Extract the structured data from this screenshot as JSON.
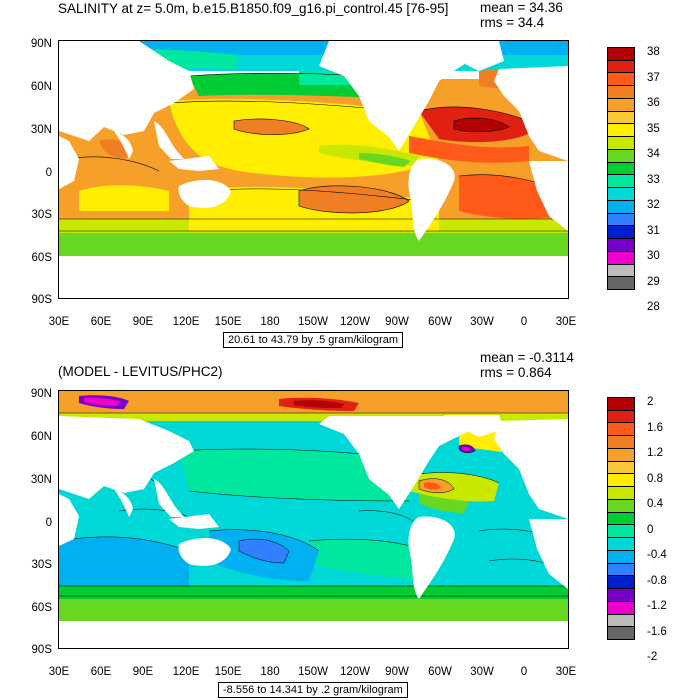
{
  "panels": [
    {
      "title": "SALINITY at z=   5.0m, b.e15.B1850.f09_g16.pi_control.45 [76-95]",
      "mean_text": "mean = 34.36",
      "rms_text": "rms = 34.4",
      "info_box": "20.61 to 43.79 by .5 gram/kilogram",
      "lat_labels": [
        "90N",
        "60N",
        "30N",
        "0",
        "30S",
        "60S",
        "90S"
      ],
      "lon_labels": [
        "30E",
        "60E",
        "90E",
        "120E",
        "150E",
        "180",
        "150W",
        "120W",
        "90W",
        "60W",
        "30W",
        "0",
        "30E"
      ],
      "colorbar": {
        "labels": [
          "38",
          "37",
          "36",
          "35",
          "34",
          "33",
          "32",
          "31",
          "30",
          "29",
          "28"
        ],
        "colors": [
          "#b30000",
          "#e02010",
          "#ff5a1a",
          "#f07e22",
          "#f6a02a",
          "#f8c838",
          "#ffee00",
          "#c8e800",
          "#66d822",
          "#00cc33",
          "#00e8a0",
          "#00d8d8",
          "#00b0f0",
          "#3080ff",
          "#0020cc",
          "#7700c8",
          "#ee00cc",
          "#bbbbbb",
          "#666666"
        ]
      },
      "chart_data": {
        "type": "heatmap",
        "title": "SALINITY at z=   5.0m, b.e15.B1850.f09_g16.pi_control.45 [76-95]",
        "variable": "salinity",
        "units": "gram/kilogram",
        "depth": "5.0m",
        "mean": 34.36,
        "rms": 34.4,
        "data_range": [
          20.61,
          43.79
        ],
        "contour_interval": 0.5,
        "lat_range": [
          "90S",
          "90N"
        ],
        "lon_range": [
          "30E",
          "30E"
        ],
        "colorbar_levels": [
          28,
          29,
          30,
          31,
          32,
          33,
          34,
          35,
          36,
          37,
          38
        ]
      }
    },
    {
      "title": "(MODEL - LEVITUS/PHC2)",
      "mean_text": "mean = -0.3114",
      "rms_text": "rms = 0.864",
      "info_box": "-8.556 to 14.341 by .2 gram/kilogram",
      "lat_labels": [
        "90N",
        "60N",
        "30N",
        "0",
        "30S",
        "60S",
        "90S"
      ],
      "lon_labels": [
        "30E",
        "60E",
        "90E",
        "120E",
        "150E",
        "180",
        "150W",
        "120W",
        "90W",
        "60W",
        "30W",
        "0",
        "30E"
      ],
      "colorbar": {
        "labels": [
          "2",
          "1.6",
          "1.2",
          "0.8",
          "0.4",
          "0",
          "-0.4",
          "-0.8",
          "-1.2",
          "-1.6",
          "-2"
        ],
        "colors": [
          "#b30000",
          "#e02010",
          "#ff5a1a",
          "#f07e22",
          "#f6a02a",
          "#f8c838",
          "#ffee00",
          "#c8e800",
          "#66d822",
          "#00cc33",
          "#00e8a0",
          "#00d8d8",
          "#00b0f0",
          "#3080ff",
          "#0020cc",
          "#7700c8",
          "#ee00cc",
          "#bbbbbb",
          "#666666"
        ]
      },
      "chart_data": {
        "type": "heatmap",
        "title": "(MODEL - LEVITUS/PHC2)",
        "variable": "salinity difference",
        "units": "gram/kilogram",
        "mean": -0.3114,
        "rms": 0.864,
        "data_range": [
          -8.556,
          14.341
        ],
        "contour_interval": 0.2,
        "lat_range": [
          "90S",
          "90N"
        ],
        "lon_range": [
          "30E",
          "30E"
        ],
        "colorbar_levels": [
          -2,
          -1.6,
          -1.2,
          -0.8,
          -0.4,
          0,
          0.4,
          0.8,
          1.2,
          1.6,
          2
        ]
      }
    }
  ]
}
